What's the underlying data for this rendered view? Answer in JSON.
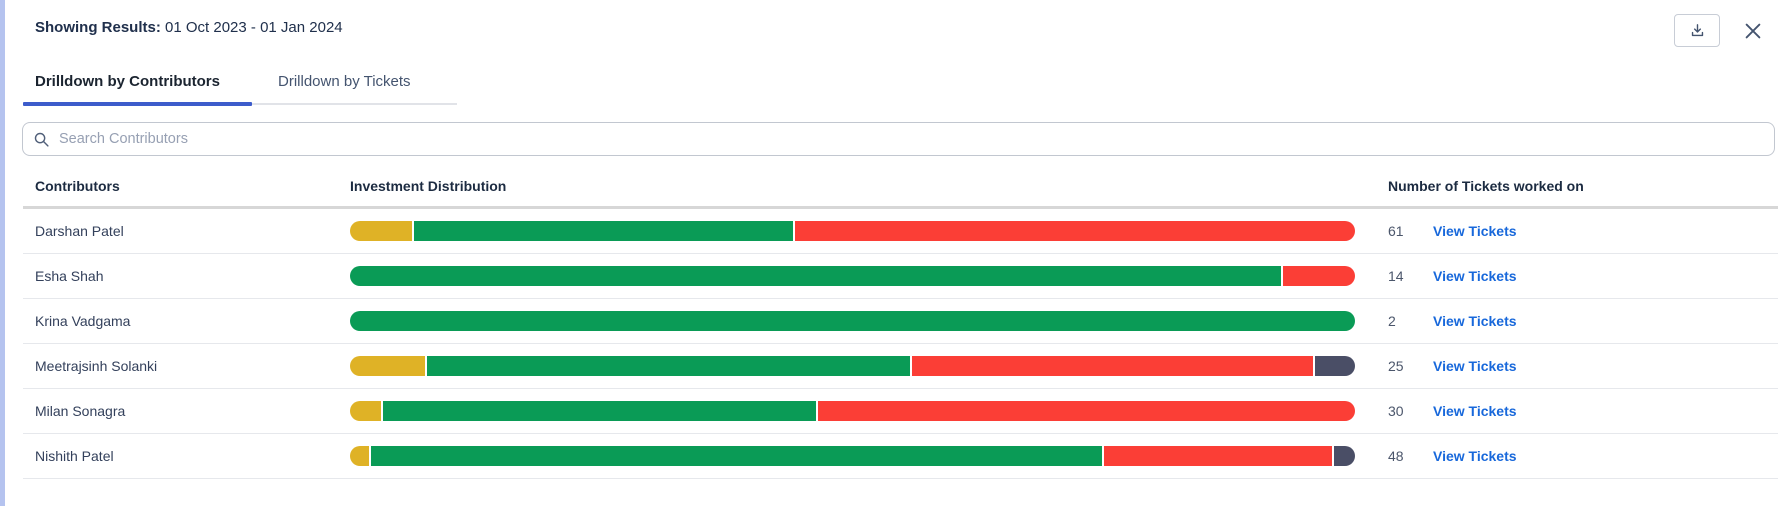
{
  "header": {
    "label": "Showing Results:",
    "date_range": "01 Oct 2023 - 01 Jan 2024"
  },
  "tabs": [
    {
      "label": "Drilldown by Contributors",
      "active": true
    },
    {
      "label": "Drilldown by Tickets",
      "active": false
    }
  ],
  "search": {
    "placeholder": "Search Contributors"
  },
  "table": {
    "columns": [
      "Contributors",
      "Investment Distribution",
      "Number of Tickets worked on"
    ],
    "view_tickets_label": "View Tickets",
    "rows": [
      {
        "name": "Darshan Patel",
        "count": "61",
        "segments": [
          {
            "color": "yellow",
            "pct": 6.2
          },
          {
            "color": "green",
            "pct": 37.9
          },
          {
            "color": "red",
            "pct": 55.9
          }
        ]
      },
      {
        "name": "Esha Shah",
        "count": "14",
        "segments": [
          {
            "color": "green",
            "pct": 92.6
          },
          {
            "color": "red",
            "pct": 7.4
          }
        ]
      },
      {
        "name": "Krina Vadgama",
        "count": "2",
        "segments": [
          {
            "color": "green",
            "pct": 100
          }
        ]
      },
      {
        "name": "Meetrajsinh Solanki",
        "count": "25",
        "segments": [
          {
            "color": "yellow",
            "pct": 7.5
          },
          {
            "color": "green",
            "pct": 48.2
          },
          {
            "color": "red",
            "pct": 40.1
          },
          {
            "color": "dark",
            "pct": 4.2
          }
        ]
      },
      {
        "name": "Milan Sonagra",
        "count": "30",
        "segments": [
          {
            "color": "yellow",
            "pct": 3.1
          },
          {
            "color": "green",
            "pct": 43.3
          },
          {
            "color": "red",
            "pct": 53.6
          }
        ]
      },
      {
        "name": "Nishith Patel",
        "count": "48",
        "segments": [
          {
            "color": "yellow",
            "pct": 1.9
          },
          {
            "color": "green",
            "pct": 72.9
          },
          {
            "color": "red",
            "pct": 22.9
          },
          {
            "color": "dark",
            "pct": 2.3
          }
        ]
      }
    ]
  },
  "colors": {
    "yellow": "#dfb226",
    "green": "#0a9b56",
    "red": "#fb3e36",
    "dark": "#4a4e66",
    "link_blue": "#1868db",
    "tab_underline": "#3d5ccb"
  }
}
